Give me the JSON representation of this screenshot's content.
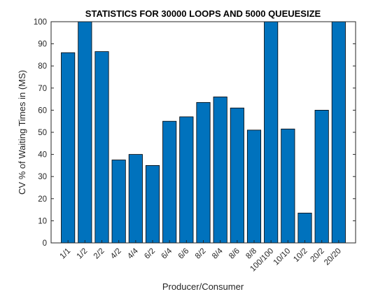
{
  "chart_data": {
    "type": "bar",
    "title": "STATISTICS FOR 30000 LOOPS AND 5000 QUEUESIZE",
    "xlabel": "Producer/Consumer",
    "ylabel": "CV % of Waiting Times in (MS)",
    "categories": [
      "1/1",
      "1/2",
      "2/2",
      "4/2",
      "4/4",
      "6/2",
      "6/4",
      "6/6",
      "8/2",
      "8/4",
      "8/6",
      "8/8",
      "100/100",
      "10/10",
      "10/2",
      "20/2",
      "20/20"
    ],
    "values": [
      86,
      100,
      86.5,
      37.5,
      40,
      35,
      55,
      57,
      63.5,
      66,
      61,
      51,
      100,
      51.5,
      13.5,
      60,
      100
    ],
    "ylim": [
      0,
      100
    ],
    "yticks": [
      0,
      10,
      20,
      30,
      40,
      50,
      60,
      70,
      80,
      90,
      100
    ],
    "bar_color": "#0072BD",
    "grid": false
  }
}
